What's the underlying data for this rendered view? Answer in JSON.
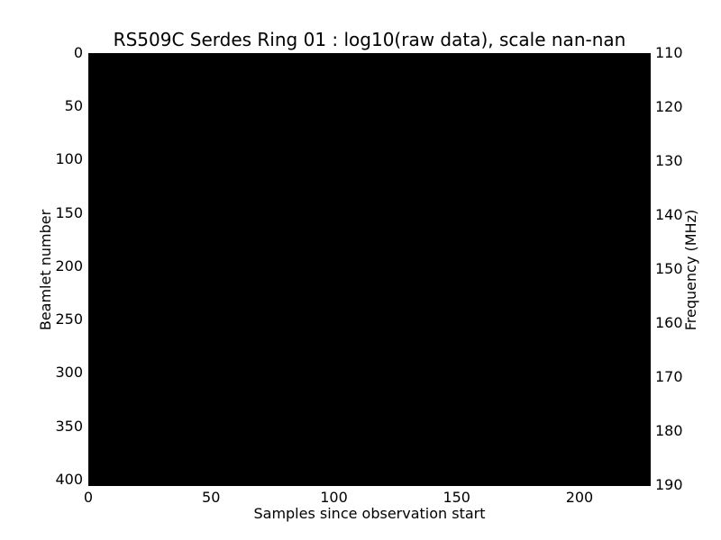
{
  "figure": {
    "background_color": "#ffffff",
    "text_color": "#000000"
  },
  "chart_data": {
    "type": "heatmap",
    "title": "RS509C Serdes Ring 01 : log10(raw data), scale nan-nan",
    "xlabel": "Samples since observation start",
    "ylabel_left": "Beamlet number",
    "ylabel_right": "Frequency (MHz)",
    "x_ticks": [
      0,
      50,
      100,
      150,
      200
    ],
    "xlim": [
      0,
      229
    ],
    "y_left_ticks": [
      0,
      50,
      100,
      150,
      200,
      250,
      300,
      350,
      400
    ],
    "ylim_left": [
      0,
      406
    ],
    "y_left_origin": "top",
    "y_right_ticks": [
      110,
      120,
      130,
      140,
      150,
      160,
      170,
      180,
      190
    ],
    "ylim_right": [
      110,
      190.2
    ],
    "y_right_origin": "top",
    "grid": false,
    "legend": null,
    "cell_color": "#000000",
    "values_summary": "uniform black image, no visible data variation (color scale nan-nan)"
  }
}
